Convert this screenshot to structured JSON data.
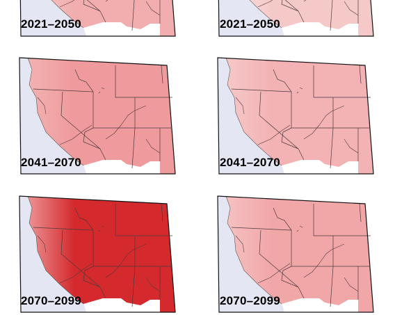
{
  "panels": [
    {
      "id": "row1-left",
      "period": "2021–2050",
      "fill": "#f2aeae",
      "fill_west": "#f7d0d0"
    },
    {
      "id": "row1-right",
      "period": "2021–2050",
      "fill": "#f6c9c9",
      "fill_west": "#fbe4e4"
    },
    {
      "id": "row2-left",
      "period": "2041–2070",
      "fill": "#ef9a9c",
      "fill_west": "#f3b6b6"
    },
    {
      "id": "row2-right",
      "period": "2041–2070",
      "fill": "#f3b2b4",
      "fill_west": "#f7cccc"
    },
    {
      "id": "row3-left",
      "period": "2070–2099",
      "fill": "#d42a2e",
      "fill_west": "#f0a6a6"
    },
    {
      "id": "row3-right",
      "period": "2070–2099",
      "fill": "#f1a6a8",
      "fill_west": "#f6c6c6"
    }
  ],
  "colors": {
    "ocean": "#e4e6f3",
    "frame": "#111111",
    "state_line": "#4a3a3a",
    "river": "#553838",
    "mexico": "#ffffff"
  }
}
